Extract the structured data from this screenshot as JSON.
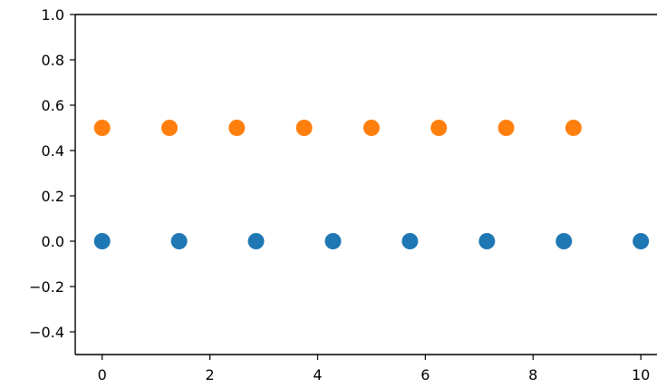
{
  "chart_data": {
    "type": "scatter",
    "title": "",
    "xlabel": "",
    "ylabel": "",
    "xlim": [
      -0.5,
      10.3
    ],
    "ylim": [
      -0.5,
      1.0
    ],
    "grid": false,
    "x_ticks": [
      0,
      2,
      4,
      6,
      8,
      10
    ],
    "x_tick_labels": [
      "0",
      "2",
      "4",
      "6",
      "8",
      "10"
    ],
    "y_ticks": [
      -0.4,
      -0.2,
      0.0,
      0.2,
      0.4,
      0.6,
      0.8,
      1.0
    ],
    "y_tick_labels": [
      "−0.4",
      "−0.2",
      "0.0",
      "0.2",
      "0.4",
      "0.6",
      "0.8",
      "1.0"
    ],
    "series": [
      {
        "color": "#1f77b4",
        "x": [
          0,
          1.4286,
          2.8571,
          4.2857,
          5.7143,
          7.1429,
          8.5714,
          10.0
        ],
        "y": [
          0,
          0,
          0,
          0,
          0,
          0,
          0,
          0
        ]
      },
      {
        "color": "#ff7f0e",
        "x": [
          0,
          1.25,
          2.5,
          3.75,
          5.0,
          6.25,
          7.5,
          8.75
        ],
        "y": [
          0.5,
          0.5,
          0.5,
          0.5,
          0.5,
          0.5,
          0.5,
          0.5
        ]
      }
    ]
  }
}
